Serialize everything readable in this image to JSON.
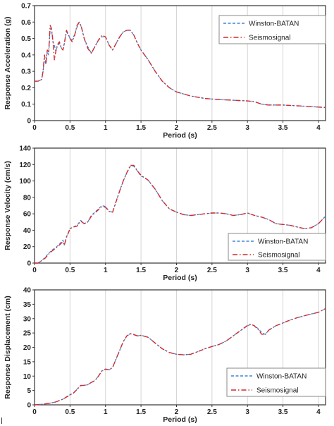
{
  "chart_data": [
    {
      "type": "line",
      "xlabel": "Period (s)",
      "ylabel": "Response Acceleration (g)",
      "xlim": [
        0,
        4.1
      ],
      "ylim": [
        0,
        0.7
      ],
      "xticks": [
        0,
        0.5,
        1,
        1.5,
        2,
        2.5,
        3,
        3.5,
        4
      ],
      "xtick_labels": [
        "0",
        "0.5",
        "1",
        "1.5",
        "2",
        "2.5",
        "3",
        "3.5",
        "4"
      ],
      "yticks": [
        0,
        0.1,
        0.2,
        0.3,
        0.4,
        0.5,
        0.6,
        0.7
      ],
      "ytick_labels": [
        "0",
        "0.1",
        "0.2",
        "0.3",
        "0.4",
        "0.5",
        "0.6",
        "0.7"
      ],
      "grid": "vertical",
      "legend_position": "top-right",
      "series": [
        {
          "name": "Winston-BATAN",
          "color": "#3a86d6",
          "style": "dashed",
          "x": [
            0,
            0.05,
            0.1,
            0.12,
            0.14,
            0.16,
            0.18,
            0.2,
            0.22,
            0.24,
            0.26,
            0.28,
            0.3,
            0.32,
            0.35,
            0.38,
            0.4,
            0.42,
            0.45,
            0.48,
            0.5,
            0.53,
            0.56,
            0.6,
            0.63,
            0.66,
            0.7,
            0.75,
            0.8,
            0.85,
            0.9,
            0.95,
            1.0,
            1.05,
            1.1,
            1.15,
            1.2,
            1.25,
            1.3,
            1.35,
            1.4,
            1.45,
            1.5,
            1.6,
            1.7,
            1.8,
            1.9,
            2.0,
            2.2,
            2.4,
            2.6,
            2.8,
            3.0,
            3.1,
            3.2,
            3.3,
            3.5,
            3.7,
            3.9,
            4.1
          ],
          "values": [
            0.24,
            0.24,
            0.25,
            0.3,
            0.38,
            0.34,
            0.42,
            0.4,
            0.56,
            0.55,
            0.48,
            0.46,
            0.42,
            0.45,
            0.47,
            0.44,
            0.43,
            0.47,
            0.54,
            0.52,
            0.5,
            0.49,
            0.52,
            0.57,
            0.6,
            0.57,
            0.5,
            0.45,
            0.41,
            0.45,
            0.49,
            0.51,
            0.51,
            0.46,
            0.43,
            0.47,
            0.51,
            0.54,
            0.55,
            0.55,
            0.52,
            0.47,
            0.43,
            0.37,
            0.3,
            0.24,
            0.2,
            0.175,
            0.15,
            0.135,
            0.128,
            0.124,
            0.12,
            0.115,
            0.1,
            0.095,
            0.095,
            0.09,
            0.085,
            0.08
          ]
        },
        {
          "name": "Seismosignal",
          "color": "#d42a2a",
          "style": "dash-dot",
          "x": [
            0,
            0.05,
            0.1,
            0.12,
            0.14,
            0.16,
            0.18,
            0.2,
            0.22,
            0.24,
            0.26,
            0.28,
            0.3,
            0.32,
            0.35,
            0.38,
            0.4,
            0.42,
            0.45,
            0.48,
            0.5,
            0.53,
            0.56,
            0.6,
            0.63,
            0.66,
            0.7,
            0.75,
            0.8,
            0.85,
            0.9,
            0.95,
            1.0,
            1.05,
            1.1,
            1.15,
            1.2,
            1.25,
            1.3,
            1.35,
            1.4,
            1.45,
            1.5,
            1.6,
            1.7,
            1.8,
            1.9,
            2.0,
            2.2,
            2.4,
            2.6,
            2.8,
            3.0,
            3.1,
            3.2,
            3.3,
            3.5,
            3.7,
            3.9,
            4.1
          ],
          "values": [
            0.24,
            0.24,
            0.25,
            0.3,
            0.4,
            0.35,
            0.43,
            0.42,
            0.58,
            0.56,
            0.48,
            0.37,
            0.42,
            0.46,
            0.48,
            0.44,
            0.43,
            0.47,
            0.55,
            0.52,
            0.5,
            0.48,
            0.51,
            0.58,
            0.6,
            0.57,
            0.5,
            0.44,
            0.41,
            0.45,
            0.49,
            0.52,
            0.51,
            0.46,
            0.43,
            0.47,
            0.51,
            0.54,
            0.55,
            0.55,
            0.52,
            0.47,
            0.43,
            0.37,
            0.3,
            0.24,
            0.2,
            0.175,
            0.15,
            0.135,
            0.128,
            0.124,
            0.12,
            0.115,
            0.1,
            0.095,
            0.095,
            0.09,
            0.085,
            0.08
          ]
        }
      ]
    },
    {
      "type": "line",
      "xlabel": "Period (s)",
      "ylabel": "Response Velocity (cm/s)",
      "xlim": [
        0,
        4.1
      ],
      "ylim": [
        0,
        140
      ],
      "xticks": [
        0,
        0.5,
        1,
        1.5,
        2,
        2.5,
        3,
        3.5,
        4
      ],
      "xtick_labels": [
        "0",
        "0.5",
        "1",
        "1.5",
        "2",
        "2.5",
        "3",
        "3.5",
        "4"
      ],
      "yticks": [
        0,
        20,
        40,
        60,
        80,
        100,
        120,
        140
      ],
      "ytick_labels": [
        "0",
        "20",
        "40",
        "60",
        "80",
        "100",
        "120",
        "140"
      ],
      "grid": "vertical",
      "legend_position": "bottom-right",
      "series": [
        {
          "name": "Winston-BATAN",
          "color": "#3a86d6",
          "style": "dashed",
          "x": [
            0,
            0.05,
            0.1,
            0.15,
            0.2,
            0.25,
            0.3,
            0.35,
            0.4,
            0.42,
            0.45,
            0.5,
            0.55,
            0.6,
            0.65,
            0.7,
            0.75,
            0.8,
            0.85,
            0.9,
            0.95,
            1.0,
            1.05,
            1.1,
            1.15,
            1.2,
            1.25,
            1.3,
            1.35,
            1.4,
            1.45,
            1.5,
            1.55,
            1.6,
            1.7,
            1.8,
            1.9,
            2.0,
            2.1,
            2.2,
            2.3,
            2.4,
            2.5,
            2.6,
            2.7,
            2.8,
            2.9,
            3.0,
            3.1,
            3.2,
            3.3,
            3.4,
            3.5,
            3.6,
            3.7,
            3.8,
            3.9,
            4.0,
            4.1
          ],
          "values": [
            0,
            0,
            3,
            7,
            12,
            16,
            19,
            23,
            28,
            22,
            32,
            42,
            44,
            46,
            52,
            48,
            50,
            58,
            62,
            66,
            70,
            69,
            63,
            62,
            75,
            88,
            100,
            110,
            118,
            118,
            112,
            106,
            104,
            101,
            90,
            76,
            66,
            62,
            59,
            58,
            59,
            60,
            61,
            61,
            60,
            58,
            59,
            61,
            58,
            56,
            53,
            48,
            47,
            46,
            44,
            42,
            43,
            48,
            57
          ]
        },
        {
          "name": "Seismosignal",
          "color": "#d42a2a",
          "style": "dash-dot",
          "x": [
            0,
            0.05,
            0.1,
            0.15,
            0.2,
            0.25,
            0.3,
            0.35,
            0.4,
            0.42,
            0.45,
            0.5,
            0.55,
            0.6,
            0.65,
            0.7,
            0.75,
            0.8,
            0.85,
            0.9,
            0.95,
            1.0,
            1.05,
            1.1,
            1.15,
            1.2,
            1.25,
            1.3,
            1.35,
            1.4,
            1.45,
            1.5,
            1.55,
            1.6,
            1.7,
            1.8,
            1.9,
            2.0,
            2.1,
            2.2,
            2.3,
            2.4,
            2.5,
            2.6,
            2.7,
            2.8,
            2.9,
            3.0,
            3.1,
            3.2,
            3.3,
            3.4,
            3.5,
            3.6,
            3.7,
            3.8,
            3.9,
            4.0,
            4.1
          ],
          "values": [
            0,
            0,
            3,
            6,
            11,
            15,
            18,
            22,
            26,
            22,
            31,
            42,
            44,
            45,
            51,
            48,
            50,
            57,
            61,
            65,
            69,
            68,
            63,
            62,
            75,
            88,
            100,
            110,
            119,
            119,
            112,
            107,
            104,
            101,
            90,
            76,
            66,
            62,
            59,
            58,
            59,
            60,
            61,
            61,
            60,
            58,
            59,
            61,
            58,
            56,
            53,
            48,
            47,
            46,
            44,
            42,
            43,
            48,
            57
          ]
        }
      ]
    },
    {
      "type": "line",
      "xlabel": "Period (s)",
      "ylabel": "Response Displacement (cm)",
      "xlim": [
        0,
        4.1
      ],
      "ylim": [
        0,
        40
      ],
      "xticks": [
        0,
        0.5,
        1,
        1.5,
        2,
        2.5,
        3,
        3.5,
        4
      ],
      "xtick_labels": [
        "0",
        "0.5",
        "1",
        "1.5",
        "2",
        "2.5",
        "3",
        "3.5",
        "4"
      ],
      "yticks": [
        0,
        5,
        10,
        15,
        20,
        25,
        30,
        35,
        40
      ],
      "ytick_labels": [
        "0",
        "5",
        "10",
        "15",
        "20",
        "25",
        "30",
        "35",
        "40"
      ],
      "grid": "vertical",
      "legend_position": "bottom-right",
      "series": [
        {
          "name": "Winston-BATAN",
          "color": "#3a86d6",
          "style": "dashed",
          "x": [
            0,
            0.1,
            0.2,
            0.3,
            0.4,
            0.45,
            0.5,
            0.55,
            0.6,
            0.65,
            0.7,
            0.75,
            0.8,
            0.85,
            0.9,
            0.95,
            1.0,
            1.05,
            1.1,
            1.15,
            1.2,
            1.25,
            1.3,
            1.35,
            1.4,
            1.45,
            1.5,
            1.6,
            1.7,
            1.8,
            1.9,
            2.0,
            2.1,
            2.2,
            2.3,
            2.4,
            2.5,
            2.6,
            2.7,
            2.8,
            2.9,
            3.0,
            3.05,
            3.1,
            3.15,
            3.2,
            3.25,
            3.3,
            3.4,
            3.5,
            3.6,
            3.7,
            3.8,
            3.9,
            4.0,
            4.1
          ],
          "values": [
            0,
            0.2,
            0.5,
            1,
            2,
            2.8,
            3.5,
            4.2,
            5.5,
            6.8,
            6.8,
            7,
            7.8,
            8.5,
            10,
            11.8,
            12.5,
            12.2,
            13,
            16,
            19,
            22,
            24,
            24.8,
            24.5,
            24,
            24.2,
            23.5,
            21.5,
            19.5,
            18.2,
            17.6,
            17.4,
            17.6,
            18.5,
            19.5,
            20.3,
            21,
            22.2,
            24,
            25.8,
            27.5,
            28,
            27.5,
            26.5,
            25.2,
            24.5,
            26,
            27.5,
            28.5,
            29.5,
            30.3,
            31,
            31.6,
            32.2,
            33.5
          ]
        },
        {
          "name": "Seismosignal",
          "color": "#d42a2a",
          "style": "dash-dot",
          "x": [
            0,
            0.1,
            0.2,
            0.3,
            0.4,
            0.45,
            0.5,
            0.55,
            0.6,
            0.65,
            0.7,
            0.75,
            0.8,
            0.85,
            0.9,
            0.95,
            1.0,
            1.05,
            1.1,
            1.15,
            1.2,
            1.25,
            1.3,
            1.35,
            1.4,
            1.45,
            1.5,
            1.6,
            1.7,
            1.8,
            1.9,
            2.0,
            2.1,
            2.2,
            2.3,
            2.4,
            2.5,
            2.6,
            2.7,
            2.8,
            2.9,
            3.0,
            3.05,
            3.1,
            3.15,
            3.2,
            3.25,
            3.3,
            3.4,
            3.5,
            3.6,
            3.7,
            3.8,
            3.9,
            4.0,
            4.1
          ],
          "values": [
            0,
            0.2,
            0.5,
            1,
            2,
            2.7,
            3.4,
            4.1,
            5.4,
            6.7,
            6.8,
            7,
            7.8,
            8.4,
            10,
            11.8,
            12.4,
            12.2,
            13,
            16,
            19,
            22,
            24,
            24.7,
            24.4,
            24,
            24.2,
            23.5,
            21.5,
            19.5,
            18.2,
            17.6,
            17.4,
            17.6,
            18.5,
            19.5,
            20.3,
            21,
            22.2,
            24,
            25.8,
            27.6,
            28.1,
            27.4,
            26.2,
            24.6,
            24.4,
            26,
            27.5,
            28.5,
            29.5,
            30.3,
            31,
            31.6,
            32.2,
            33.5
          ]
        }
      ]
    }
  ]
}
